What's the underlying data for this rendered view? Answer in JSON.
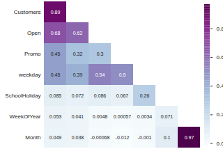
{
  "chart_data": {
    "type": "heatmap",
    "rows": [
      "Customers",
      "Open",
      "Promo",
      "weekday",
      "SchoolHoliday",
      "WeekOfYear",
      "Month"
    ],
    "columns": [
      null,
      null,
      null,
      null,
      null,
      null,
      null
    ],
    "cells": [
      [
        0.89
      ],
      [
        0.68,
        0.62
      ],
      [
        0.45,
        0.32,
        0.3
      ],
      [
        0.45,
        0.39,
        0.54,
        0.5
      ],
      [
        0.085,
        0.072,
        0.086,
        0.067,
        0.26
      ],
      [
        0.053,
        0.041,
        0.0048,
        0.00057,
        0.0034,
        0.071
      ],
      [
        0.049,
        0.038,
        -0.00068,
        -0.012,
        -0.001,
        0.1,
        0.97
      ]
    ],
    "data_labels": true,
    "tick_labels": "y",
    "colorbar": {
      "range": [
        -0.012,
        0.97
      ],
      "ticks": [
        {
          "value": 0,
          "label": "0.0"
        },
        {
          "value": 0.2,
          "label": "0.2"
        },
        {
          "value": 0.4,
          "label": "0.4"
        },
        {
          "value": 0.6,
          "label": "0.6"
        },
        {
          "value": 0.8,
          "label": "0.8"
        }
      ]
    }
  }
}
